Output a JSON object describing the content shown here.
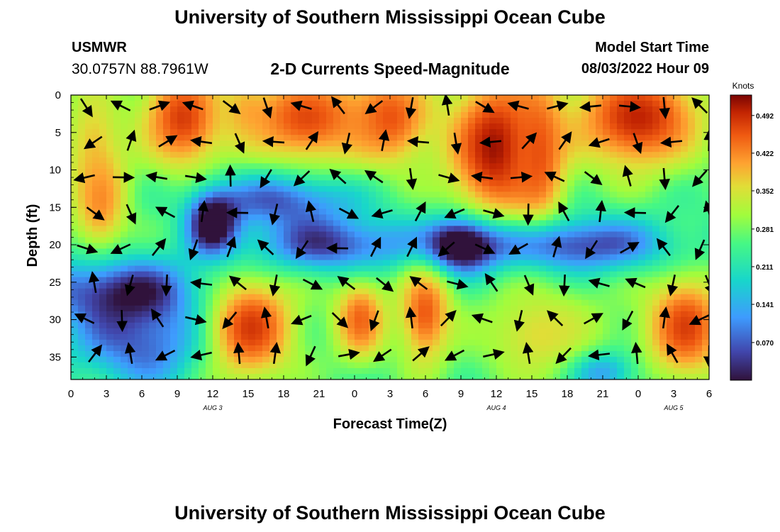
{
  "page": {
    "title": "University of Southern Mississippi Ocean Cube",
    "site": "USMWR",
    "coords": "30.0757N  88.7961W",
    "subtitle": "2-D Currents Speed-Magnitude",
    "model_start_label": "Model Start Time",
    "model_start_value": "08/03/2022 Hour 09",
    "footer_title": "University of Southern Mississippi Ocean Cube"
  },
  "chart_data": {
    "type": "heatmap",
    "xlabel": "Forecast Time(Z)",
    "ylabel": "Depth (ft)",
    "xlim": [
      0,
      54
    ],
    "ylim": [
      0,
      38
    ],
    "x_ticks": [
      "0",
      "3",
      "6",
      "9",
      "12",
      "15",
      "18",
      "21",
      "0",
      "3",
      "6",
      "9",
      "12",
      "15",
      "18",
      "21",
      "0",
      "3",
      "6"
    ],
    "y_ticks": [
      "0",
      "5",
      "10",
      "15",
      "20",
      "25",
      "30",
      "35"
    ],
    "date_labels": [
      {
        "label": "AUG 3",
        "hour_index": 12
      },
      {
        "label": "AUG 4",
        "hour_index": 36
      },
      {
        "label": "AUG 5",
        "hour_index": 51
      }
    ],
    "colorbar": {
      "unit": "Knots",
      "range": [
        0.0,
        0.53
      ],
      "tick_labels": [
        "0.492",
        "0.422",
        "0.352",
        "0.281",
        "0.211",
        "0.141",
        "0.070"
      ]
    },
    "speed_regions": [
      {
        "x": 1.8,
        "y": 6,
        "sx": 1.8,
        "sy": 7,
        "v": 0.36
      },
      {
        "x": 2.5,
        "y": 14,
        "sx": 1.6,
        "sy": 5,
        "v": 0.42
      },
      {
        "x": 9.5,
        "y": 3,
        "sx": 2.6,
        "sy": 5,
        "v": 0.48
      },
      {
        "x": 14.5,
        "y": 2,
        "sx": 1.5,
        "sy": 3,
        "v": 0.35
      },
      {
        "x": 20,
        "y": 3,
        "sx": 4,
        "sy": 4.5,
        "v": 0.47
      },
      {
        "x": 27,
        "y": 3,
        "sx": 2.5,
        "sy": 4.5,
        "v": 0.46
      },
      {
        "x": 36,
        "y": 7,
        "sx": 3,
        "sy": 7,
        "v": 0.52
      },
      {
        "x": 39.5,
        "y": 8,
        "sx": 1.6,
        "sy": 7,
        "v": 0.46
      },
      {
        "x": 48,
        "y": 3,
        "sx": 4,
        "sy": 5,
        "v": 0.5
      },
      {
        "x": 15,
        "y": 31,
        "sx": 2.8,
        "sy": 5,
        "v": 0.5
      },
      {
        "x": 24.5,
        "y": 30,
        "sx": 1.6,
        "sy": 4,
        "v": 0.45
      },
      {
        "x": 30,
        "y": 29,
        "sx": 1.6,
        "sy": 5,
        "v": 0.46
      },
      {
        "x": 52,
        "y": 31,
        "sx": 2.5,
        "sy": 5,
        "v": 0.48
      },
      {
        "x": 40,
        "y": 32,
        "sx": 4,
        "sy": 5,
        "v": 0.36
      },
      {
        "x": 4,
        "y": 26,
        "sx": 5,
        "sy": 3,
        "v": -0.22
      },
      {
        "x": 6,
        "y": 33,
        "sx": 4,
        "sy": 4,
        "v": -0.18
      },
      {
        "x": 12,
        "y": 17,
        "sx": 1.5,
        "sy": 3,
        "v": -0.28
      },
      {
        "x": 22,
        "y": 20,
        "sx": 5,
        "sy": 2.5,
        "v": -0.2
      },
      {
        "x": 33,
        "y": 20,
        "sx": 2,
        "sy": 2.5,
        "v": -0.3
      },
      {
        "x": 42,
        "y": 20,
        "sx": 6,
        "sy": 2.5,
        "v": -0.22
      },
      {
        "x": 18,
        "y": 14,
        "sx": 4,
        "sy": 2.5,
        "v": -0.18
      },
      {
        "x": 45,
        "y": 37,
        "sx": 2,
        "sy": 2,
        "v": -0.15
      }
    ]
  }
}
